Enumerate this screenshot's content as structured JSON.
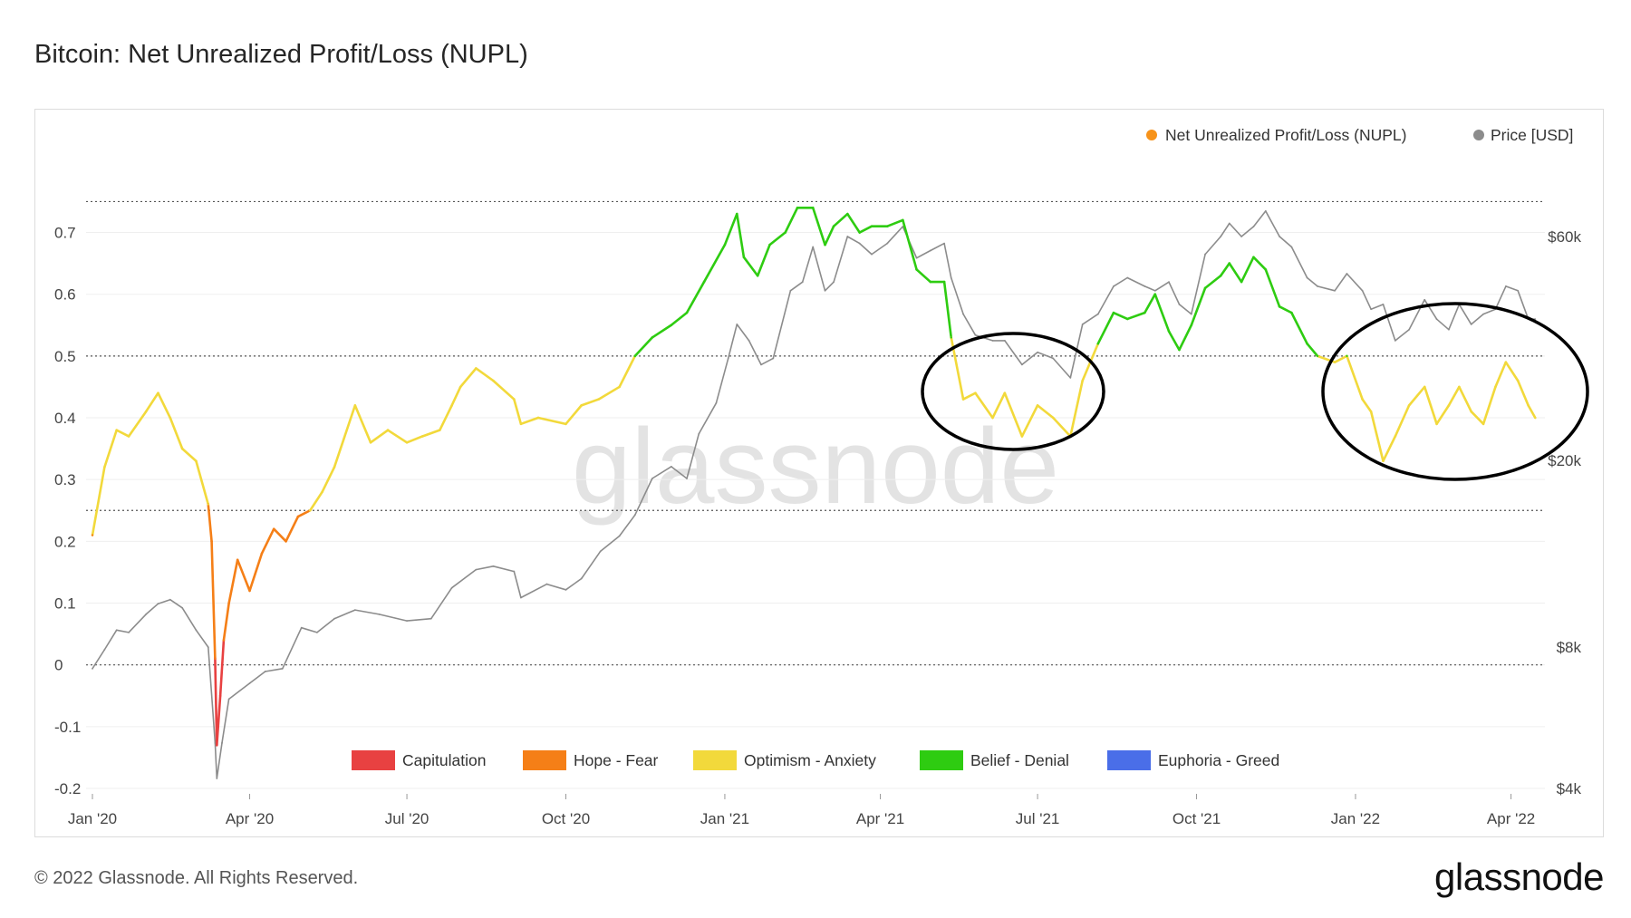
{
  "page": {
    "title": "Bitcoin: Net Unrealized Profit/Loss (NUPL)",
    "copyright": "© 2022 Glassnode. All Rights Reserved.",
    "logo": "glassnode",
    "watermark": "glassnode"
  },
  "chart_data": {
    "type": "line",
    "title": "Bitcoin: Net Unrealized Profit/Loss (NUPL)",
    "x_ticks": [
      "Jan '20",
      "Apr '20",
      "Jul '20",
      "Oct '20",
      "Jan '21",
      "Apr '21",
      "Jul '21",
      "Oct '21",
      "Jan '22",
      "Apr '22"
    ],
    "y_left_ticks": [
      "-0.2",
      "-0.1",
      "0",
      "0.1",
      "0.2",
      "0.3",
      "0.4",
      "0.5",
      "0.6",
      "0.7"
    ],
    "y_left_range": [
      -0.2,
      0.78
    ],
    "y_right_ticks": [
      "$4k",
      "$8k",
      "$20k",
      "$60k"
    ],
    "y_right_scale": "log",
    "y_right_range": [
      4000,
      78000
    ],
    "reference_lines": [
      0,
      0.25,
      0.5,
      0.75
    ],
    "legend_top": [
      "Net Unrealized Profit/Loss (NUPL)",
      "Price [USD]"
    ],
    "legend_top_colors": [
      "#f7931a",
      "#8c8c8c"
    ],
    "zones": [
      {
        "name": "Capitulation",
        "color": "#e84141",
        "range": "< 0"
      },
      {
        "name": "Hope - Fear",
        "color": "#f57f17",
        "range": "0 - 0.25"
      },
      {
        "name": "Optimism - Anxiety",
        "color": "#f2d93b",
        "range": "0.25 - 0.5"
      },
      {
        "name": "Belief - Denial",
        "color": "#2ecc11",
        "range": "0.5 - 0.75"
      },
      {
        "name": "Euphoria - Greed",
        "color": "#4a6ee8",
        "range": "> 0.75"
      }
    ],
    "annotations": [
      "ellipse around May–Jul 2021 NUPL dip",
      "ellipse around Jan–Apr 2022 NUPL dip"
    ],
    "series": [
      {
        "name": "Net Unrealized Profit/Loss (NUPL)",
        "x": [
          "2020-01-01",
          "2020-01-08",
          "2020-01-15",
          "2020-01-22",
          "2020-02-01",
          "2020-02-08",
          "2020-02-15",
          "2020-02-22",
          "2020-03-01",
          "2020-03-08",
          "2020-03-10",
          "2020-03-12",
          "2020-03-13",
          "2020-03-15",
          "2020-03-17",
          "2020-03-20",
          "2020-03-25",
          "2020-04-01",
          "2020-04-08",
          "2020-04-15",
          "2020-04-22",
          "2020-04-29",
          "2020-05-06",
          "2020-05-13",
          "2020-05-20",
          "2020-06-01",
          "2020-06-10",
          "2020-06-20",
          "2020-07-01",
          "2020-07-10",
          "2020-07-20",
          "2020-07-27",
          "2020-08-01",
          "2020-08-10",
          "2020-08-20",
          "2020-09-01",
          "2020-09-05",
          "2020-09-15",
          "2020-10-01",
          "2020-10-10",
          "2020-10-20",
          "2020-11-01",
          "2020-11-10",
          "2020-11-20",
          "2020-12-01",
          "2020-12-10",
          "2020-12-20",
          "2021-01-01",
          "2021-01-08",
          "2021-01-12",
          "2021-01-20",
          "2021-01-27",
          "2021-02-05",
          "2021-02-12",
          "2021-02-21",
          "2021-02-28",
          "2021-03-05",
          "2021-03-13",
          "2021-03-20",
          "2021-03-27",
          "2021-04-05",
          "2021-04-14",
          "2021-04-22",
          "2021-04-30",
          "2021-05-08",
          "2021-05-12",
          "2021-05-19",
          "2021-05-26",
          "2021-06-05",
          "2021-06-12",
          "2021-06-22",
          "2021-07-01",
          "2021-07-10",
          "2021-07-20",
          "2021-07-27",
          "2021-08-05",
          "2021-08-14",
          "2021-08-22",
          "2021-09-01",
          "2021-09-07",
          "2021-09-15",
          "2021-09-21",
          "2021-09-28",
          "2021-10-06",
          "2021-10-15",
          "2021-10-20",
          "2021-10-27",
          "2021-11-03",
          "2021-11-10",
          "2021-11-18",
          "2021-11-25",
          "2021-12-04",
          "2021-12-10",
          "2021-12-20",
          "2021-12-27",
          "2022-01-05",
          "2022-01-10",
          "2022-01-17",
          "2022-01-24",
          "2022-02-01",
          "2022-02-10",
          "2022-02-17",
          "2022-02-24",
          "2022-03-02",
          "2022-03-09",
          "2022-03-16",
          "2022-03-23",
          "2022-03-29",
          "2022-04-05",
          "2022-04-11",
          "2022-04-15"
        ],
        "y": [
          0.21,
          0.32,
          0.38,
          0.37,
          0.41,
          0.44,
          0.4,
          0.35,
          0.33,
          0.26,
          0.2,
          0.01,
          -0.13,
          -0.05,
          0.04,
          0.1,
          0.17,
          0.12,
          0.18,
          0.22,
          0.2,
          0.24,
          0.25,
          0.28,
          0.32,
          0.42,
          0.36,
          0.38,
          0.36,
          0.37,
          0.38,
          0.42,
          0.45,
          0.48,
          0.46,
          0.43,
          0.39,
          0.4,
          0.39,
          0.42,
          0.43,
          0.45,
          0.5,
          0.53,
          0.55,
          0.57,
          0.62,
          0.68,
          0.73,
          0.66,
          0.63,
          0.68,
          0.7,
          0.74,
          0.74,
          0.68,
          0.71,
          0.73,
          0.7,
          0.71,
          0.71,
          0.72,
          0.64,
          0.62,
          0.62,
          0.53,
          0.43,
          0.44,
          0.4,
          0.44,
          0.37,
          0.42,
          0.4,
          0.37,
          0.46,
          0.52,
          0.57,
          0.56,
          0.57,
          0.6,
          0.54,
          0.51,
          0.55,
          0.61,
          0.63,
          0.65,
          0.62,
          0.66,
          0.64,
          0.58,
          0.57,
          0.52,
          0.5,
          0.49,
          0.5,
          0.43,
          0.41,
          0.33,
          0.37,
          0.42,
          0.45,
          0.39,
          0.42,
          0.45,
          0.41,
          0.39,
          0.45,
          0.49,
          0.46,
          0.42,
          0.4
        ]
      },
      {
        "name": "Price [USD]",
        "x": [
          "2020-01-01",
          "2020-01-08",
          "2020-01-15",
          "2020-01-22",
          "2020-02-01",
          "2020-02-08",
          "2020-02-15",
          "2020-02-22",
          "2020-03-01",
          "2020-03-08",
          "2020-03-12",
          "2020-03-13",
          "2020-03-16",
          "2020-03-20",
          "2020-04-01",
          "2020-04-10",
          "2020-04-20",
          "2020-05-01",
          "2020-05-10",
          "2020-05-20",
          "2020-06-01",
          "2020-06-15",
          "2020-07-01",
          "2020-07-15",
          "2020-07-27",
          "2020-08-10",
          "2020-08-20",
          "2020-09-01",
          "2020-09-05",
          "2020-09-20",
          "2020-10-01",
          "2020-10-10",
          "2020-10-21",
          "2020-11-01",
          "2020-11-10",
          "2020-11-20",
          "2020-12-01",
          "2020-12-10",
          "2020-12-17",
          "2020-12-27",
          "2021-01-03",
          "2021-01-08",
          "2021-01-15",
          "2021-01-22",
          "2021-01-29",
          "2021-02-08",
          "2021-02-15",
          "2021-02-21",
          "2021-02-28",
          "2021-03-05",
          "2021-03-13",
          "2021-03-20",
          "2021-03-27",
          "2021-04-05",
          "2021-04-14",
          "2021-04-22",
          "2021-04-30",
          "2021-05-08",
          "2021-05-12",
          "2021-05-19",
          "2021-05-26",
          "2021-06-05",
          "2021-06-12",
          "2021-06-22",
          "2021-07-01",
          "2021-07-10",
          "2021-07-20",
          "2021-07-27",
          "2021-08-05",
          "2021-08-14",
          "2021-08-22",
          "2021-09-01",
          "2021-09-07",
          "2021-09-15",
          "2021-09-21",
          "2021-09-28",
          "2021-10-06",
          "2021-10-15",
          "2021-10-20",
          "2021-10-27",
          "2021-11-03",
          "2021-11-10",
          "2021-11-18",
          "2021-11-25",
          "2021-12-04",
          "2021-12-10",
          "2021-12-20",
          "2021-12-27",
          "2022-01-05",
          "2022-01-10",
          "2022-01-17",
          "2022-01-24",
          "2022-02-01",
          "2022-02-10",
          "2022-02-17",
          "2022-02-24",
          "2022-03-02",
          "2022-03-09",
          "2022-03-16",
          "2022-03-23",
          "2022-03-29",
          "2022-04-05",
          "2022-04-11",
          "2022-04-15"
        ],
        "y": [
          7200,
          7900,
          8700,
          8600,
          9400,
          9900,
          10100,
          9700,
          8700,
          8000,
          5000,
          4200,
          5000,
          6200,
          6700,
          7100,
          7200,
          8800,
          8600,
          9200,
          9600,
          9400,
          9100,
          9200,
          10700,
          11700,
          11900,
          11600,
          10200,
          10900,
          10600,
          11200,
          12800,
          13800,
          15300,
          18300,
          19400,
          18300,
          22800,
          26500,
          33000,
          39000,
          36000,
          32000,
          33000,
          46000,
          48000,
          57000,
          46000,
          48000,
          60000,
          58000,
          55000,
          58000,
          63000,
          54000,
          56000,
          58000,
          49000,
          41000,
          37000,
          36000,
          36000,
          32000,
          34000,
          33000,
          30000,
          39000,
          41000,
          47000,
          49000,
          47000,
          46000,
          48000,
          43000,
          41000,
          55000,
          60000,
          64000,
          60000,
          63000,
          68000,
          60000,
          57000,
          49000,
          47000,
          46000,
          50000,
          46000,
          42000,
          43000,
          36000,
          38000,
          44000,
          40000,
          38000,
          43000,
          39000,
          41000,
          42000,
          47000,
          46000,
          40000,
          40000
        ]
      }
    ]
  }
}
